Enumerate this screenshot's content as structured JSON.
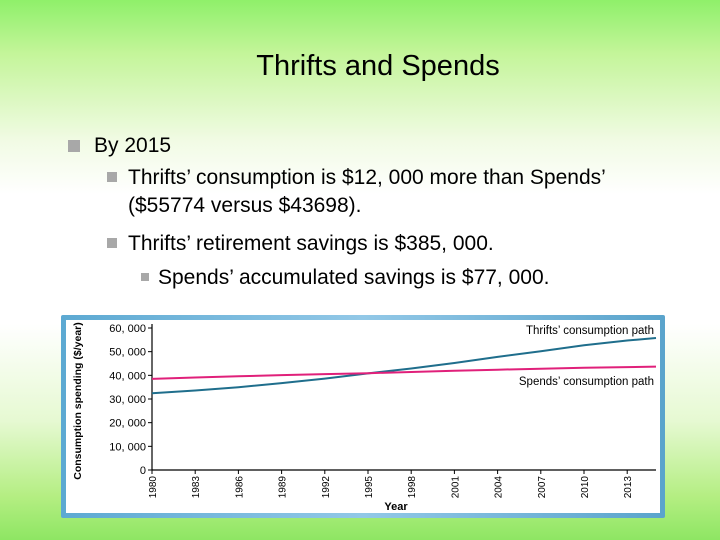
{
  "slide": {
    "title": "Thrifts and Spends",
    "bullet1": "By 2015",
    "bullet2_line1": "Thrifts’ consumption is $12, 000 more than Spends’",
    "bullet2_line2": "($55774 versus $43698).",
    "bullet3": "Thrifts’ retirement savings is $385, 000.",
    "bullet4": "Spends’ accumulated savings is $77, 000."
  },
  "chart_data": {
    "type": "line",
    "xlabel": "Year",
    "ylabel": "Consumption spending ($/year)",
    "xlim": [
      1980,
      2015
    ],
    "ylim": [
      0,
      60000
    ],
    "x_ticks": [
      "1980",
      "1983",
      "1986",
      "1989",
      "1992",
      "1995",
      "1998",
      "2001",
      "2004",
      "2007",
      "2010",
      "2013"
    ],
    "y_ticks": [
      "0",
      "10, 000",
      "20, 000",
      "30, 000",
      "40, 000",
      "50, 000",
      "60, 000"
    ],
    "series": [
      {
        "name": "Thrifts’ consumption path",
        "color": "#1f6e8c",
        "x": [
          1980,
          1983,
          1986,
          1989,
          1992,
          1995,
          1998,
          2001,
          2004,
          2007,
          2010,
          2013,
          2015
        ],
        "y": [
          32400,
          33600,
          35000,
          36700,
          38600,
          40800,
          42900,
          45200,
          47800,
          50200,
          52700,
          54700,
          55774
        ]
      },
      {
        "name": "Spends’ consumption path",
        "color": "#e0207a",
        "x": [
          1980,
          1983,
          1986,
          1989,
          1992,
          1995,
          1998,
          2001,
          2004,
          2007,
          2010,
          2013,
          2015
        ],
        "y": [
          38500,
          39100,
          39600,
          40100,
          40500,
          40900,
          41400,
          41900,
          42400,
          42800,
          43200,
          43500,
          43698
        ]
      }
    ]
  }
}
